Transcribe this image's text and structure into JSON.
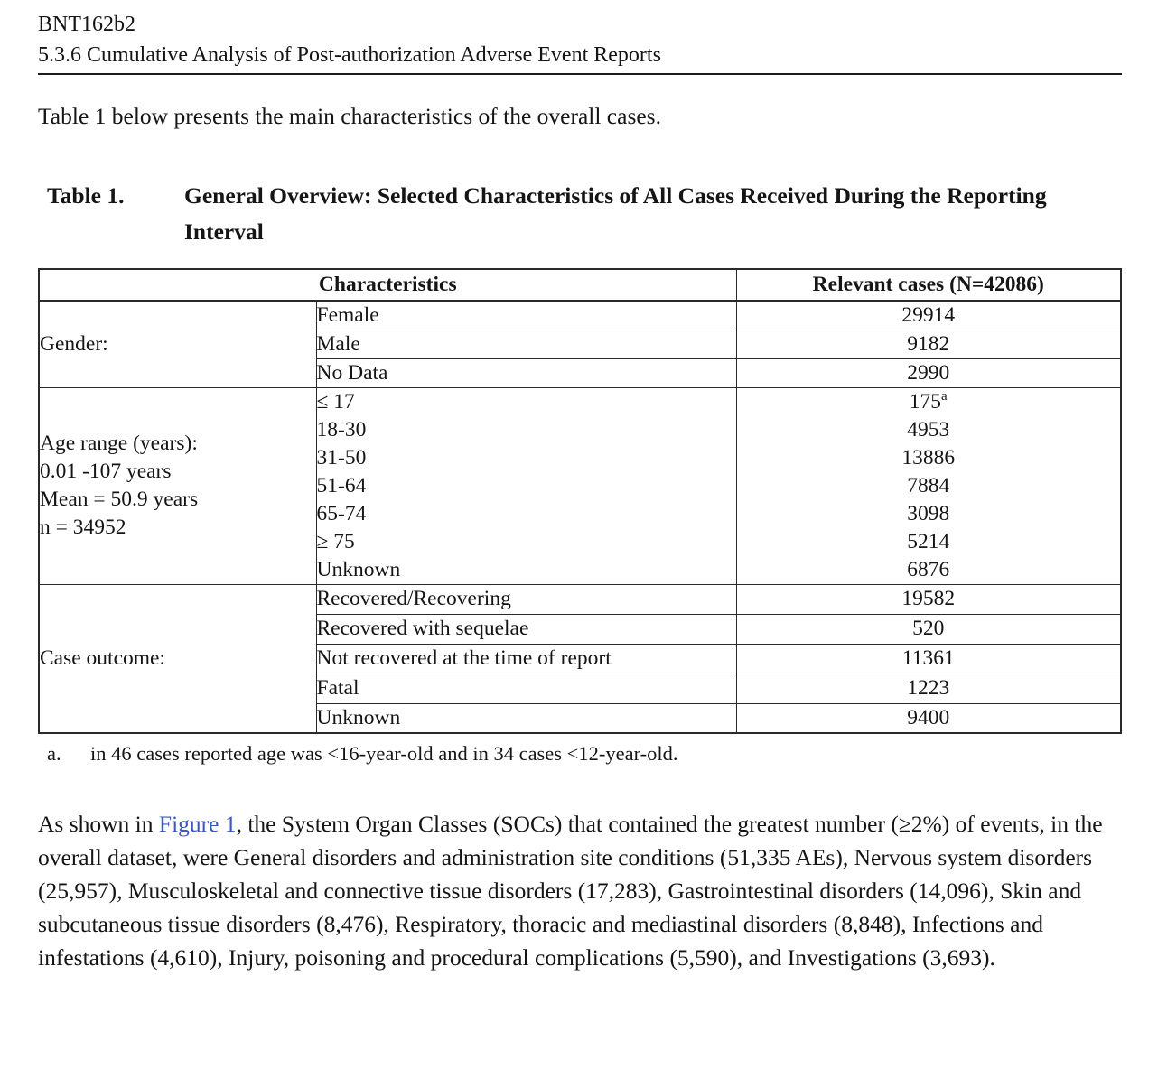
{
  "page": {
    "header": {
      "line1": "BNT162b2",
      "line2": "5.3.6 Cumulative Analysis of Post-authorization Adverse Event Reports"
    },
    "intro": "Table 1 below presents the main characteristics of the overall cases.",
    "table1": {
      "label": "Table 1.",
      "caption": "General Overview: Selected Characteristics of All Cases Received During the Reporting Interval",
      "col_headers": {
        "characteristics": "Characteristics",
        "relevant_cases": "Relevant cases (N=42086)"
      },
      "gender": {
        "label": "Gender:",
        "rows": [
          {
            "characteristic": "Female",
            "value": "29914"
          },
          {
            "characteristic": "Male",
            "value": "9182"
          },
          {
            "characteristic": "No Data",
            "value": "2990"
          }
        ]
      },
      "age": {
        "label_lines": [
          "Age range (years):",
          "0.01 -107 years",
          "Mean = 50.9 years",
          "n = 34952"
        ],
        "rows": [
          {
            "characteristic": "≤ 17",
            "value": "175",
            "value_sup": "a"
          },
          {
            "characteristic": "18-30",
            "value": "4953"
          },
          {
            "characteristic": "31-50",
            "value": "13886"
          },
          {
            "characteristic": "51-64",
            "value": "7884"
          },
          {
            "characteristic": "65-74",
            "value": "3098"
          },
          {
            "characteristic": "≥ 75",
            "value": "5214"
          },
          {
            "characteristic": "Unknown",
            "value": "6876"
          }
        ]
      },
      "outcome": {
        "label": "Case outcome:",
        "rows": [
          {
            "characteristic": "Recovered/Recovering",
            "value": "19582"
          },
          {
            "characteristic": "Recovered with sequelae",
            "value": "520"
          },
          {
            "characteristic": "Not recovered at the time of report",
            "value": "11361"
          },
          {
            "characteristic": "Fatal",
            "value": "1223"
          },
          {
            "characteristic": "Unknown",
            "value": "9400"
          }
        ]
      },
      "footnote": {
        "marker": "a.",
        "text": "in 46 cases reported age was <16-year-old and in 34 cases <12-year-old."
      }
    },
    "paragraph": {
      "before_link": "As shown in ",
      "link": "Figure 1",
      "after_link": ", the System Organ Classes (SOCs) that contained the greatest number (≥2%) of events, in the overall dataset, were General disorders and administration site conditions (51,335 AEs), Nervous system disorders (25,957), Musculoskeletal and connective tissue disorders (17,283), Gastrointestinal disorders (14,096), Skin and subcutaneous tissue disorders (8,476), Respiratory, thoracic and mediastinal disorders (8,848), Infections and infestations (4,610), Injury, poisoning and procedural complications (5,590), and Investigations (3,693)."
    },
    "colors": {
      "link_blue": "#3A57C4",
      "text": "#151515"
    }
  }
}
